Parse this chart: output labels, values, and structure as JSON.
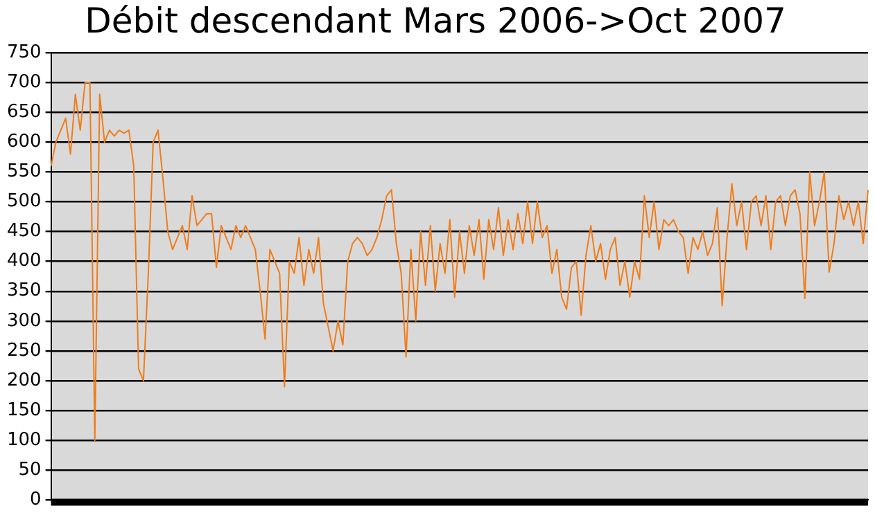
{
  "chart_data": {
    "type": "line",
    "title": "Débit descendant Mars 2006->Oct 2007",
    "categories": [
      null,
      null,
      null,
      null,
      null,
      null,
      null,
      null,
      null,
      null,
      null,
      null,
      null,
      null,
      null,
      null,
      null,
      null,
      null,
      null,
      null,
      null,
      null,
      null,
      null,
      null,
      null,
      null,
      null,
      null,
      null,
      null,
      null,
      null,
      null,
      null,
      null,
      null,
      null,
      null,
      null,
      null,
      null,
      null,
      null,
      null,
      null,
      null,
      null,
      null,
      null,
      null,
      null,
      null,
      null,
      null,
      null,
      null,
      null,
      null,
      null,
      null,
      null,
      null,
      null,
      null,
      null,
      null,
      null,
      null,
      null,
      null,
      null,
      null,
      null,
      null,
      null,
      null,
      null,
      null,
      null,
      null,
      null,
      null,
      null,
      null,
      null,
      null,
      null,
      null,
      null,
      null,
      null,
      null,
      null,
      null,
      null,
      null,
      null,
      null,
      null,
      null,
      null,
      null,
      null,
      null,
      null,
      null,
      null,
      null,
      null,
      null,
      null,
      null,
      null,
      null,
      null,
      null,
      null,
      null,
      null,
      null,
      null,
      null,
      null,
      null,
      null,
      null,
      null,
      null,
      null,
      null,
      null,
      null,
      null,
      null,
      null,
      null,
      null,
      null,
      null,
      null,
      null,
      null,
      null,
      null,
      null,
      null,
      null,
      null,
      null,
      null,
      null,
      null,
      null,
      null,
      null,
      null,
      null,
      null,
      null,
      null,
      null,
      null,
      null,
      null,
      null,
      null,
      null
    ],
    "series": [
      {
        "color": "#f07d1a",
        "values": [
          560,
          600,
          620,
          640,
          580,
          680,
          620,
          700,
          700,
          100,
          680,
          600,
          620,
          610,
          620,
          615,
          620,
          560,
          220,
          200,
          380,
          600,
          620,
          540,
          450,
          420,
          440,
          460,
          420,
          510,
          460,
          470,
          480,
          480,
          390,
          460,
          440,
          420,
          460,
          440,
          460,
          440,
          420,
          350,
          270,
          420,
          400,
          380,
          190,
          400,
          380,
          440,
          360,
          420,
          380,
          440,
          330,
          290,
          250,
          300,
          260,
          400,
          430,
          440,
          430,
          410,
          420,
          440,
          470,
          510,
          520,
          430,
          380,
          240,
          420,
          300,
          450,
          360,
          460,
          350,
          430,
          380,
          470,
          340,
          450,
          380,
          460,
          410,
          470,
          370,
          470,
          420,
          490,
          410,
          470,
          420,
          480,
          430,
          500,
          430,
          500,
          440,
          460,
          380,
          420,
          340,
          320,
          390,
          400,
          310,
          410,
          460,
          400,
          430,
          370,
          420,
          440,
          360,
          400,
          340,
          400,
          370,
          510,
          440,
          500,
          420,
          470,
          460,
          470,
          450,
          440,
          380,
          440,
          420,
          450,
          410,
          430,
          490,
          326,
          440,
          530,
          460,
          500,
          420,
          500,
          510,
          460,
          510,
          420,
          500,
          510,
          460,
          510,
          520,
          480,
          338,
          550,
          460,
          500,
          550,
          382,
          430,
          510,
          470,
          500,
          460,
          500,
          430,
          520
        ]
      }
    ],
    "ylim": [
      0,
      750
    ],
    "yticks": [
      0,
      50,
      100,
      150,
      200,
      250,
      300,
      350,
      400,
      450,
      500,
      550,
      600,
      650,
      700,
      750
    ],
    "grid": "y",
    "tick_labels": "y",
    "marker": "none"
  }
}
